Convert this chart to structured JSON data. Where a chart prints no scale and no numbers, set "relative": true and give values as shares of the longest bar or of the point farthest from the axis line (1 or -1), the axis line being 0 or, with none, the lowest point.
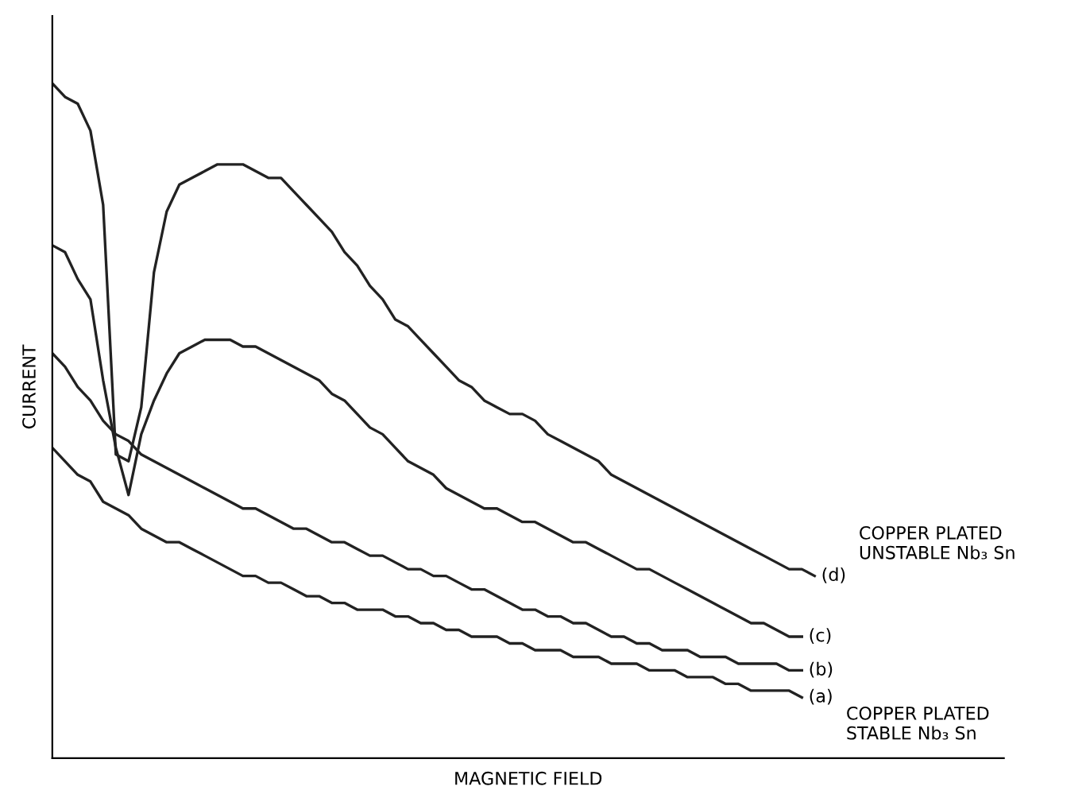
{
  "chart_data": {
    "type": "line",
    "relative": true,
    "xlabel": "MAGNETIC FIELD",
    "ylabel": "CURRENT",
    "legend": false,
    "marker": "none",
    "line_style": "solid",
    "categories": [
      null,
      null,
      null,
      null,
      null,
      null,
      null,
      null,
      null,
      null,
      null,
      null,
      null,
      null,
      null,
      null,
      null,
      null,
      null,
      null,
      null,
      null,
      null,
      null,
      null,
      null,
      null,
      null,
      null,
      null,
      null,
      null,
      null,
      null,
      null,
      null,
      null,
      null,
      null,
      null,
      null,
      null,
      null,
      null,
      null,
      null,
      null,
      null,
      null,
      null,
      null,
      null,
      null,
      null,
      null,
      null,
      null,
      null,
      null,
      null,
      null
    ],
    "series": [
      {
        "name": "(a)",
        "color": "#222222",
        "values": [
          0.46,
          0.44,
          0.42,
          0.41,
          0.38,
          0.37,
          0.36,
          0.34,
          0.33,
          0.32,
          0.32,
          0.31,
          0.3,
          0.29,
          0.28,
          0.27,
          0.27,
          0.26,
          0.26,
          0.25,
          0.24,
          0.24,
          0.23,
          0.23,
          0.22,
          0.22,
          0.22,
          0.21,
          0.21,
          0.2,
          0.2,
          0.19,
          0.19,
          0.18,
          0.18,
          0.18,
          0.17,
          0.17,
          0.16,
          0.16,
          0.16,
          0.15,
          0.15,
          0.15,
          0.14,
          0.14,
          0.14,
          0.13,
          0.13,
          0.13,
          0.12,
          0.12,
          0.12,
          0.11,
          0.11,
          0.1,
          0.1,
          0.1,
          0.1,
          0.09,
          null
        ]
      },
      {
        "name": "(b)",
        "color": "#222222",
        "values": [
          0.6,
          0.58,
          0.55,
          0.53,
          0.5,
          0.48,
          0.47,
          0.45,
          0.44,
          0.43,
          0.42,
          0.41,
          0.4,
          0.39,
          0.38,
          0.37,
          0.37,
          0.36,
          0.35,
          0.34,
          0.34,
          0.33,
          0.32,
          0.32,
          0.31,
          0.3,
          0.3,
          0.29,
          0.28,
          0.28,
          0.27,
          0.27,
          0.26,
          0.25,
          0.25,
          0.24,
          0.23,
          0.22,
          0.22,
          0.21,
          0.21,
          0.2,
          0.2,
          0.19,
          0.18,
          0.18,
          0.17,
          0.17,
          0.16,
          0.16,
          0.16,
          0.15,
          0.15,
          0.15,
          0.14,
          0.14,
          0.14,
          0.14,
          0.13,
          0.13,
          null
        ]
      },
      {
        "name": "(c)",
        "color": "#222222",
        "values": [
          0.76,
          0.75,
          0.71,
          0.68,
          0.56,
          0.46,
          0.39,
          0.48,
          0.53,
          0.57,
          0.6,
          0.61,
          0.62,
          0.62,
          0.62,
          0.61,
          0.61,
          0.6,
          0.59,
          0.58,
          0.57,
          0.56,
          0.54,
          0.53,
          0.51,
          0.49,
          0.48,
          0.46,
          0.44,
          0.43,
          0.42,
          0.4,
          0.39,
          0.38,
          0.37,
          0.37,
          0.36,
          0.35,
          0.35,
          0.34,
          0.33,
          0.32,
          0.32,
          0.31,
          0.3,
          0.29,
          0.28,
          0.28,
          0.27,
          0.26,
          0.25,
          0.24,
          0.23,
          0.22,
          0.21,
          0.2,
          0.2,
          0.19,
          0.18,
          0.18,
          null
        ]
      },
      {
        "name": "(d)",
        "color": "#222222",
        "values": [
          1.0,
          0.98,
          0.97,
          0.93,
          0.82,
          0.45,
          0.44,
          0.52,
          0.72,
          0.81,
          0.85,
          0.86,
          0.87,
          0.88,
          0.88,
          0.88,
          0.87,
          0.86,
          0.86,
          0.84,
          0.82,
          0.8,
          0.78,
          0.75,
          0.73,
          0.7,
          0.68,
          0.65,
          0.64,
          0.62,
          0.6,
          0.58,
          0.56,
          0.55,
          0.53,
          0.52,
          0.51,
          0.51,
          0.5,
          0.48,
          0.47,
          0.46,
          0.45,
          0.44,
          0.42,
          0.41,
          0.4,
          0.39,
          0.38,
          0.37,
          0.36,
          0.35,
          0.34,
          0.33,
          0.32,
          0.31,
          0.3,
          0.29,
          0.28,
          0.28,
          0.27
        ]
      }
    ],
    "annotations": [
      "COPPER PLATED\nUNSTABLE Nb₃ Sn",
      "COPPER PLATED\nSTABLE Nb₃ Sn"
    ]
  }
}
